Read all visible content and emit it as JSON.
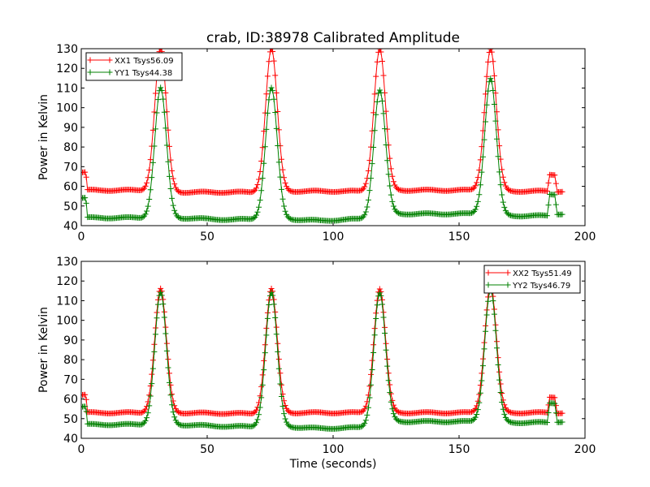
{
  "chart_data": [
    {
      "type": "line",
      "title": "crab, ID:38978 Calibrated Amplitude",
      "xlabel": "",
      "ylabel": "Power in Kelvin",
      "xlim": [
        0,
        200
      ],
      "ylim": [
        40,
        130
      ],
      "xticks": [
        0,
        50,
        100,
        150,
        200
      ],
      "yticks": [
        40,
        50,
        60,
        70,
        80,
        90,
        100,
        110,
        120,
        130
      ],
      "grid": false,
      "legend_position": "top-left",
      "series": [
        {
          "name": "XX1 Tsys56.09",
          "color": "#ff0000",
          "baseline": [
            [
              0,
              67
            ],
            [
              1.8,
              67
            ],
            [
              2.5,
              58
            ],
            [
              30,
              58
            ],
            [
              36,
              57
            ],
            [
              70,
              57
            ],
            [
              79,
              57.5
            ],
            [
              113,
              57.5
            ],
            [
              122,
              58
            ],
            [
              157,
              58
            ],
            [
              166,
              57.5
            ],
            [
              185,
              57.5
            ],
            [
              186,
              66
            ],
            [
              188,
              66
            ],
            [
              189,
              57.5
            ],
            [
              191,
              57.5
            ]
          ],
          "peaks": [
            [
              31.5,
              130,
              2.3
            ],
            [
              75.5,
              130,
              2.3
            ],
            [
              118.5,
              130,
              2.3
            ],
            [
              162.5,
              130,
              2.3
            ]
          ]
        },
        {
          "name": "YY1 Tsys44.38",
          "color": "#008000",
          "baseline": [
            [
              0,
              54
            ],
            [
              1.8,
              54
            ],
            [
              2.5,
              44
            ],
            [
              30,
              44
            ],
            [
              36,
              44
            ],
            [
              60,
              43
            ],
            [
              71,
              43.5
            ],
            [
              80,
              43.5
            ],
            [
              95,
              42.5
            ],
            [
              113,
              43.5
            ],
            [
              122,
              46
            ],
            [
              157,
              46
            ],
            [
              166,
              45
            ],
            [
              185,
              45
            ],
            [
              186,
              56
            ],
            [
              188,
              56
            ],
            [
              189,
              46
            ],
            [
              191,
              46
            ]
          ],
          "peaks": [
            [
              31.5,
              110,
              2.3
            ],
            [
              75.5,
              110,
              2.3
            ],
            [
              118.5,
              109,
              2.3
            ],
            [
              162.5,
              115,
              2.3
            ]
          ]
        }
      ]
    },
    {
      "type": "line",
      "title": "",
      "xlabel": "Time (seconds)",
      "ylabel": "Power in Kelvin",
      "xlim": [
        0,
        200
      ],
      "ylim": [
        40,
        130
      ],
      "xticks": [
        0,
        50,
        100,
        150,
        200
      ],
      "yticks": [
        40,
        50,
        60,
        70,
        80,
        90,
        100,
        110,
        120,
        130
      ],
      "grid": false,
      "legend_position": "top-right",
      "series": [
        {
          "name": "XX2 Tsys51.49",
          "color": "#ff0000",
          "baseline": [
            [
              0,
              62
            ],
            [
              1.8,
              62
            ],
            [
              2.5,
              53
            ],
            [
              30,
              53
            ],
            [
              36,
              53
            ],
            [
              70,
              52.5
            ],
            [
              79,
              53
            ],
            [
              113,
              53
            ],
            [
              122,
              53
            ],
            [
              157,
              53
            ],
            [
              166,
              53
            ],
            [
              185,
              53
            ],
            [
              186,
              61
            ],
            [
              188,
              61
            ],
            [
              189,
              53
            ],
            [
              191,
              53
            ]
          ],
          "peaks": [
            [
              31.5,
              116,
              2.3
            ],
            [
              75.5,
              116,
              2.3
            ],
            [
              118.5,
              116,
              2.3
            ],
            [
              162.5,
              118,
              2.3
            ]
          ]
        },
        {
          "name": "YY2 Tsys46.79",
          "color": "#008000",
          "baseline": [
            [
              0,
              56
            ],
            [
              1.8,
              56
            ],
            [
              2.5,
              47
            ],
            [
              30,
              47
            ],
            [
              36,
              47
            ],
            [
              60,
              46
            ],
            [
              71,
              46
            ],
            [
              80,
              46
            ],
            [
              95,
              45
            ],
            [
              113,
              45.5
            ],
            [
              122,
              48.5
            ],
            [
              157,
              48.5
            ],
            [
              166,
              48
            ],
            [
              185,
              48
            ],
            [
              186,
              58
            ],
            [
              188,
              58
            ],
            [
              189,
              48.5
            ],
            [
              191,
              48.5
            ]
          ],
          "peaks": [
            [
              31.5,
              114,
              2.3
            ],
            [
              75.5,
              114,
              2.3
            ],
            [
              118.5,
              114,
              2.3
            ],
            [
              162.5,
              116,
              2.3
            ]
          ]
        }
      ]
    }
  ]
}
